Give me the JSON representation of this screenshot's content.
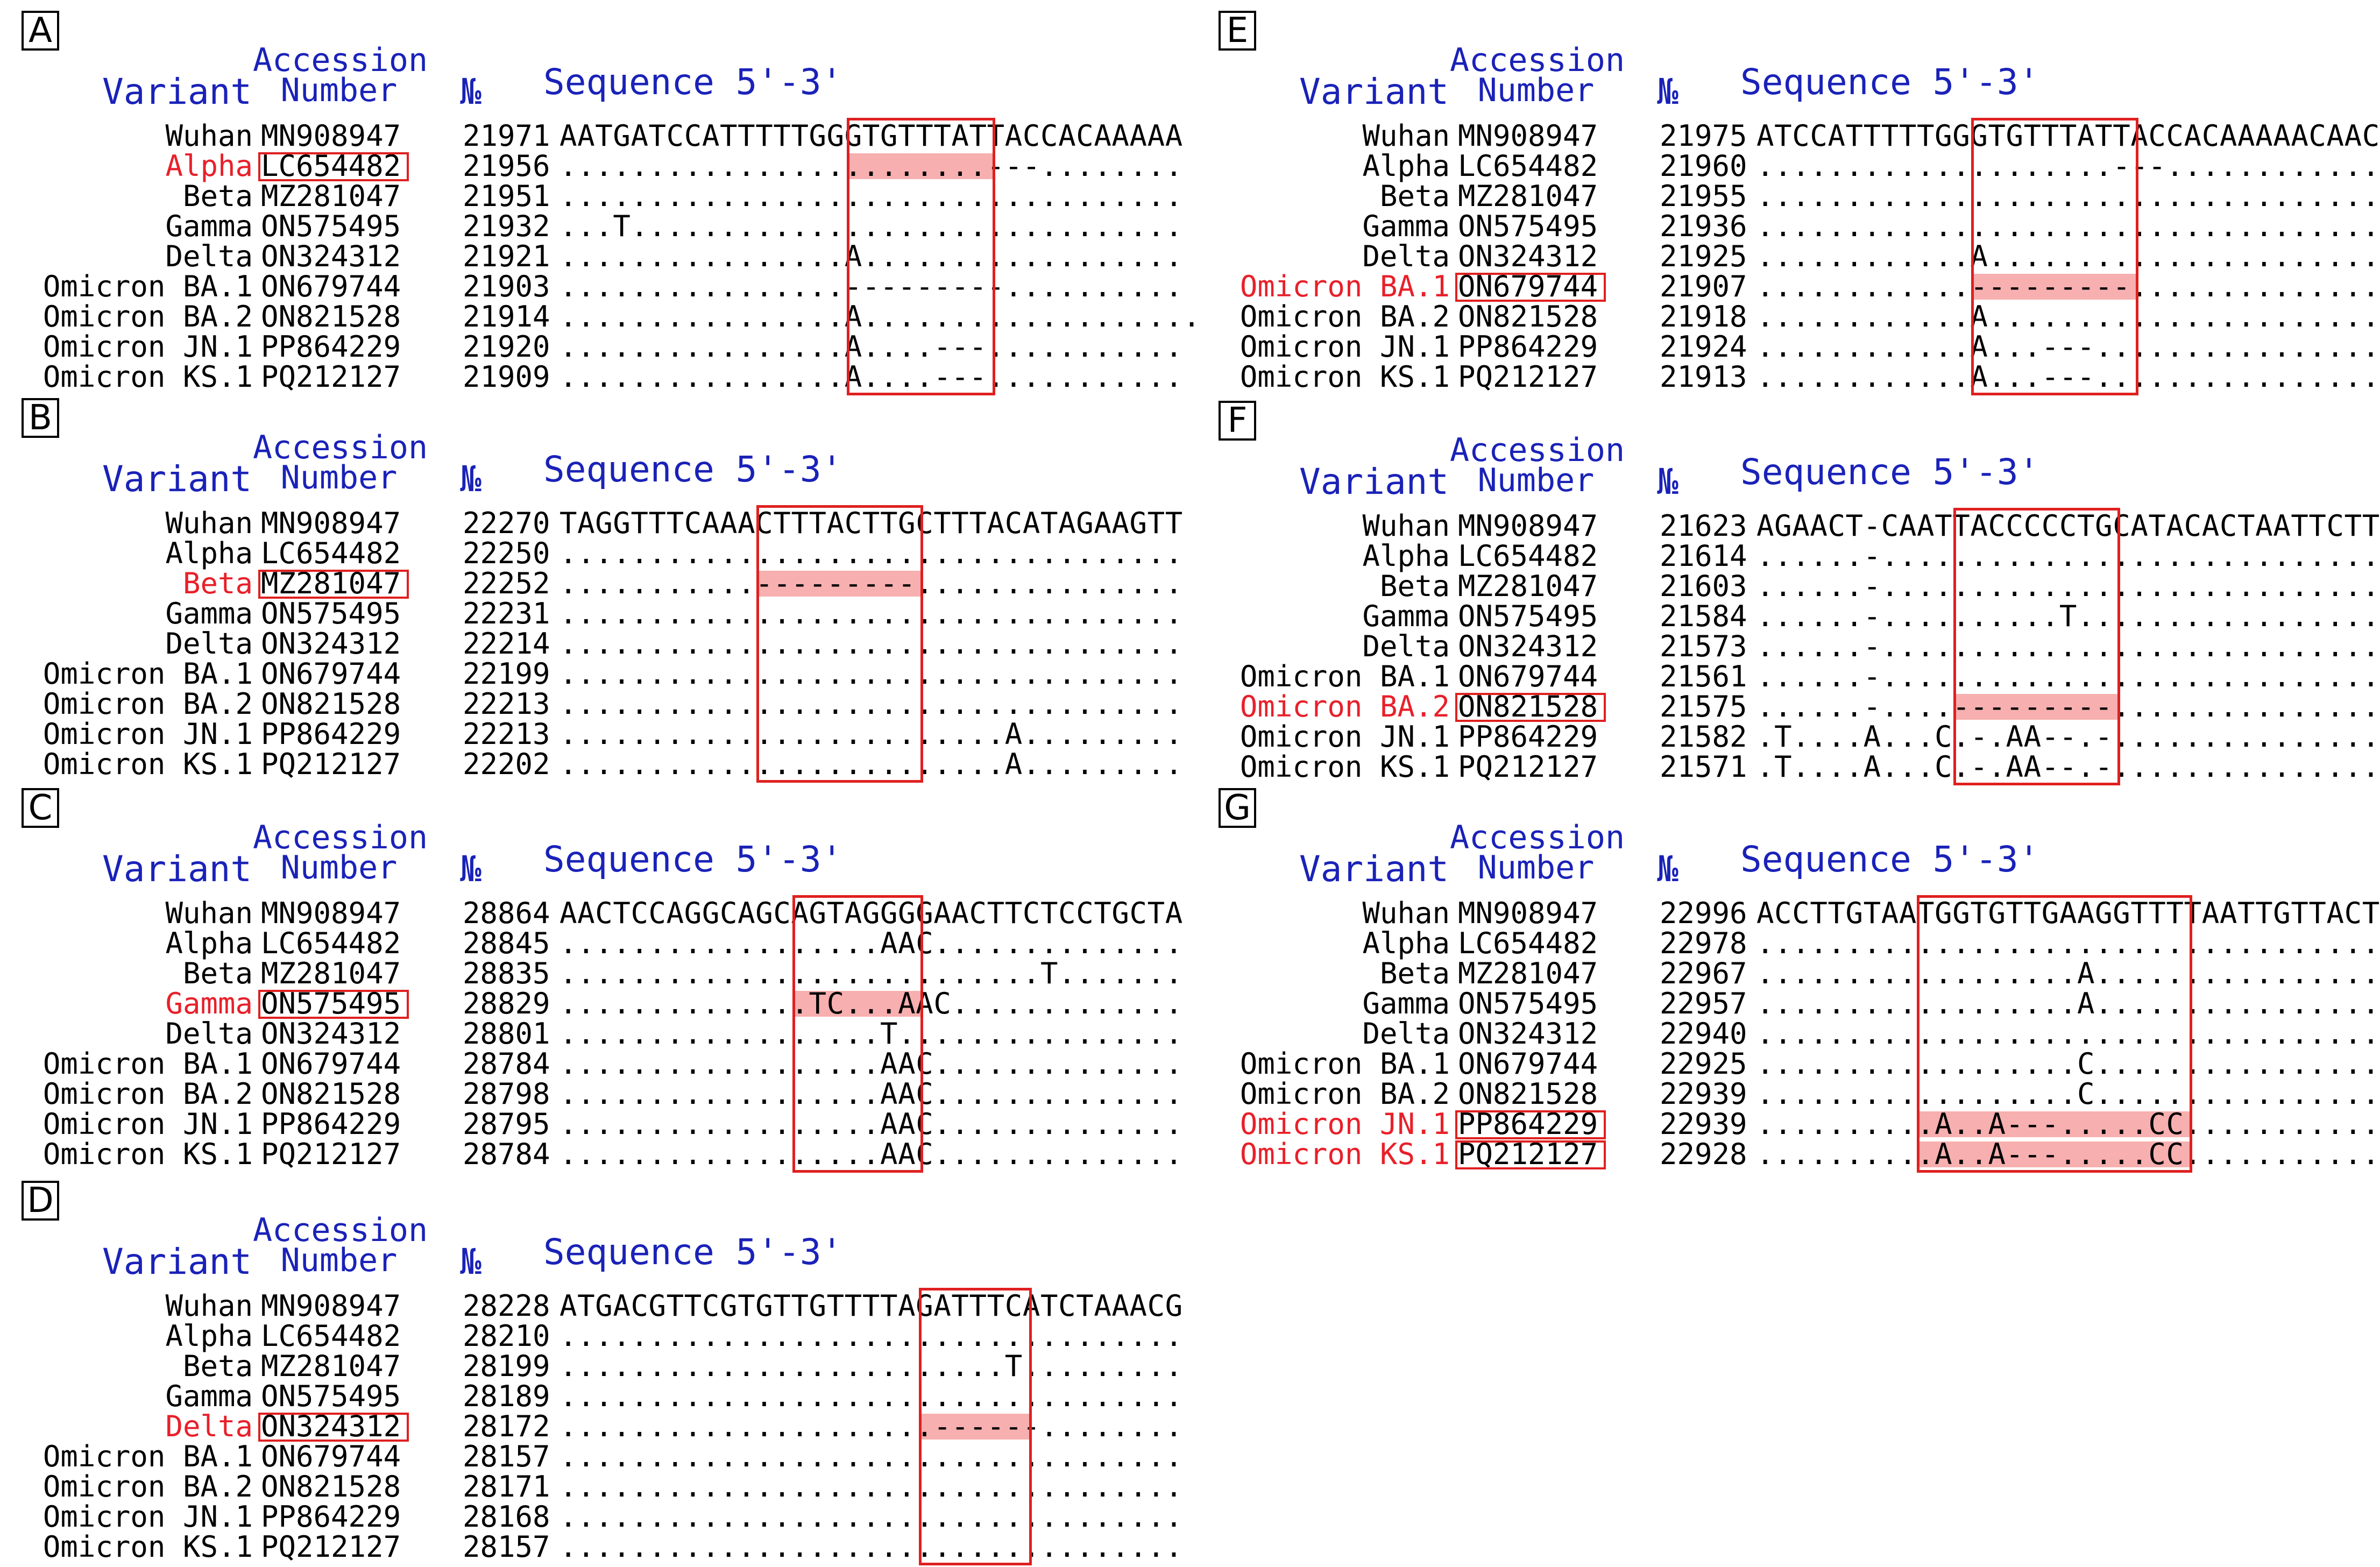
{
  "headers": {
    "variant": "Variant",
    "accession_line1": "Accession",
    "accession_line2": "Number",
    "number": "№",
    "sequence": "Sequence 5'-3'"
  },
  "colors": {
    "header": "#1a22b8",
    "highlight": "#e8202a",
    "box": "#e02020"
  },
  "panels": [
    {
      "label": "A",
      "highlight_row": 1,
      "rows": [
        {
          "variant": "Wuhan",
          "accession": "MN908947",
          "num": "21971",
          "seq": "AATGATCCATTTTTGGGTGTTTATTACCACAAAAA"
        },
        {
          "variant": "Alpha",
          "accession": "LC654482",
          "num": "21956",
          "seq": "........................---........"
        },
        {
          "variant": "Beta",
          "accession": "MZ281047",
          "num": "21951",
          "seq": "..................................."
        },
        {
          "variant": "Gamma",
          "accession": "ON575495",
          "num": "21932",
          "seq": "...T..............................."
        },
        {
          "variant": "Delta",
          "accession": "ON324312",
          "num": "21921",
          "seq": "................A.................."
        },
        {
          "variant": "Omicron BA.1",
          "accession": "ON679744",
          "num": "21903",
          "seq": "................---------.........."
        },
        {
          "variant": "Omicron BA.2",
          "accession": "ON821528",
          "num": "21914",
          "seq": "................A..................."
        },
        {
          "variant": "Omicron JN.1",
          "accession": "PP864229",
          "num": "21920",
          "seq": "................A....---..........."
        },
        {
          "variant": "Omicron KS.1",
          "accession": "PQ212127",
          "num": "21909",
          "seq": "................A....---..........."
        }
      ]
    },
    {
      "label": "B",
      "highlight_row": 2,
      "rows": [
        {
          "variant": "Wuhan",
          "accession": "MN908947",
          "num": "22270",
          "seq": "TAGGTTTCAAACTTTACTTGCTTTACATAGAAGTT"
        },
        {
          "variant": "Alpha",
          "accession": "LC654482",
          "num": "22250",
          "seq": "..................................."
        },
        {
          "variant": "Beta",
          "accession": "MZ281047",
          "num": "22252",
          "seq": "...........---------..............."
        },
        {
          "variant": "Gamma",
          "accession": "ON575495",
          "num": "22231",
          "seq": "..................................."
        },
        {
          "variant": "Delta",
          "accession": "ON324312",
          "num": "22214",
          "seq": "..................................."
        },
        {
          "variant": "Omicron BA.1",
          "accession": "ON679744",
          "num": "22199",
          "seq": "..................................."
        },
        {
          "variant": "Omicron BA.2",
          "accession": "ON821528",
          "num": "22213",
          "seq": "..................................."
        },
        {
          "variant": "Omicron JN.1",
          "accession": "PP864229",
          "num": "22213",
          "seq": ".........................A........."
        },
        {
          "variant": "Omicron KS.1",
          "accession": "PQ212127",
          "num": "22202",
          "seq": ".........................A........."
        }
      ]
    },
    {
      "label": "C",
      "highlight_row": 3,
      "rows": [
        {
          "variant": "Wuhan",
          "accession": "MN908947",
          "num": "28864",
          "seq": "AACTCCAGGCAGCAGTAGGGGAACTTCTCCTGCTA"
        },
        {
          "variant": "Alpha",
          "accession": "LC654482",
          "num": "28845",
          "seq": "..................AAC.............."
        },
        {
          "variant": "Beta",
          "accession": "MZ281047",
          "num": "28835",
          "seq": "...........................T......."
        },
        {
          "variant": "Gamma",
          "accession": "ON575495",
          "num": "28829",
          "seq": "..............TC...AAC............."
        },
        {
          "variant": "Delta",
          "accession": "ON324312",
          "num": "28801",
          "seq": "..................T................"
        },
        {
          "variant": "Omicron BA.1",
          "accession": "ON679744",
          "num": "28784",
          "seq": "..................AAC.............."
        },
        {
          "variant": "Omicron BA.2",
          "accession": "ON821528",
          "num": "28798",
          "seq": "..................AAC.............."
        },
        {
          "variant": "Omicron JN.1",
          "accession": "PP864229",
          "num": "28795",
          "seq": "..................AAC.............."
        },
        {
          "variant": "Omicron KS.1",
          "accession": "PQ212127",
          "num": "28784",
          "seq": "..................AAC.............."
        }
      ]
    },
    {
      "label": "D",
      "highlight_row": 4,
      "rows": [
        {
          "variant": "Wuhan",
          "accession": "MN908947",
          "num": "28228",
          "seq": "ATGACGTTCGTGTTGTTTTAGATTTCATCTAAACG"
        },
        {
          "variant": "Alpha",
          "accession": "LC654482",
          "num": "28210",
          "seq": "..................................."
        },
        {
          "variant": "Beta",
          "accession": "MZ281047",
          "num": "28199",
          "seq": ".........................T........."
        },
        {
          "variant": "Gamma",
          "accession": "ON575495",
          "num": "28189",
          "seq": "..................................."
        },
        {
          "variant": "Delta",
          "accession": "ON324312",
          "num": "28172",
          "seq": ".....................------........"
        },
        {
          "variant": "Omicron BA.1",
          "accession": "ON679744",
          "num": "28157",
          "seq": "..................................."
        },
        {
          "variant": "Omicron BA.2",
          "accession": "ON821528",
          "num": "28171",
          "seq": "..................................."
        },
        {
          "variant": "Omicron JN.1",
          "accession": "PP864229",
          "num": "28168",
          "seq": "..................................."
        },
        {
          "variant": "Omicron KS.1",
          "accession": "PQ212127",
          "num": "28157",
          "seq": "..................................."
        }
      ]
    },
    {
      "label": "E",
      "highlight_row": 5,
      "rows": [
        {
          "variant": "Wuhan",
          "accession": "MN908947",
          "num": "21975",
          "seq": "ATCCATTTTTGGGTGTTTATTACCACAAAAACAAC"
        },
        {
          "variant": "Alpha",
          "accession": "LC654482",
          "num": "21960",
          "seq": "....................---............"
        },
        {
          "variant": "Beta",
          "accession": "MZ281047",
          "num": "21955",
          "seq": "..................................."
        },
        {
          "variant": "Gamma",
          "accession": "ON575495",
          "num": "21936",
          "seq": "..................................."
        },
        {
          "variant": "Delta",
          "accession": "ON324312",
          "num": "21925",
          "seq": "............A......................"
        },
        {
          "variant": "Omicron BA.1",
          "accession": "ON679744",
          "num": "21907",
          "seq": "............---------.............."
        },
        {
          "variant": "Omicron BA.2",
          "accession": "ON821528",
          "num": "21918",
          "seq": "............A......................"
        },
        {
          "variant": "Omicron JN.1",
          "accession": "PP864229",
          "num": "21924",
          "seq": "............A...---................"
        },
        {
          "variant": "Omicron KS.1",
          "accession": "PQ212127",
          "num": "21913",
          "seq": "............A...---................"
        }
      ]
    },
    {
      "label": "F",
      "highlight_row": 6,
      "rows": [
        {
          "variant": "Wuhan",
          "accession": "MN908947",
          "num": "21623",
          "seq": "AGAACT-CAATTACCCCCTGCATACACTAATTCTT"
        },
        {
          "variant": "Alpha",
          "accession": "LC654482",
          "num": "21614",
          "seq": "......-............................"
        },
        {
          "variant": "Beta",
          "accession": "MZ281047",
          "num": "21603",
          "seq": "......-............................"
        },
        {
          "variant": "Gamma",
          "accession": "ON575495",
          "num": "21584",
          "seq": "......-..........T................."
        },
        {
          "variant": "Delta",
          "accession": "ON324312",
          "num": "21573",
          "seq": "......-............................"
        },
        {
          "variant": "Omicron BA.1",
          "accession": "ON679744",
          "num": "21561",
          "seq": "......-............................"
        },
        {
          "variant": "Omicron BA.2",
          "accession": "ON821528",
          "num": "21575",
          "seq": "......-....---------..............."
        },
        {
          "variant": "Omicron JN.1",
          "accession": "PP864229",
          "num": "21582",
          "seq": ".T....A...C.-.AA--.-..............."
        },
        {
          "variant": "Omicron KS.1",
          "accession": "PQ212127",
          "num": "21571",
          "seq": ".T....A...C.-.AA--.-..............."
        }
      ]
    },
    {
      "label": "G",
      "highlight_row": 7,
      "rows": [
        {
          "variant": "Wuhan",
          "accession": "MN908947",
          "num": "22996",
          "seq": "ACCTTGTAATGGTGTTGAAGGTTTTAATTGTTACT"
        },
        {
          "variant": "Alpha",
          "accession": "LC654482",
          "num": "22978",
          "seq": "..................................."
        },
        {
          "variant": "Beta",
          "accession": "MZ281047",
          "num": "22967",
          "seq": "..................A................"
        },
        {
          "variant": "Gamma",
          "accession": "ON575495",
          "num": "22957",
          "seq": "..................A................"
        },
        {
          "variant": "Delta",
          "accession": "ON324312",
          "num": "22940",
          "seq": "..................................."
        },
        {
          "variant": "Omicron BA.1",
          "accession": "ON679744",
          "num": "22925",
          "seq": "..................C................"
        },
        {
          "variant": "Omicron BA.2",
          "accession": "ON821528",
          "num": "22939",
          "seq": "..................C................"
        },
        {
          "variant": "Omicron JN.1",
          "accession": "PP864229",
          "num": "22939",
          "seq": "..........A..A---.....CC..........."
        },
        {
          "variant": "Omicron KS.1",
          "accession": "PQ212127",
          "num": "22928",
          "seq": "..........A..A---.....CC..........."
        }
      ]
    }
  ]
}
